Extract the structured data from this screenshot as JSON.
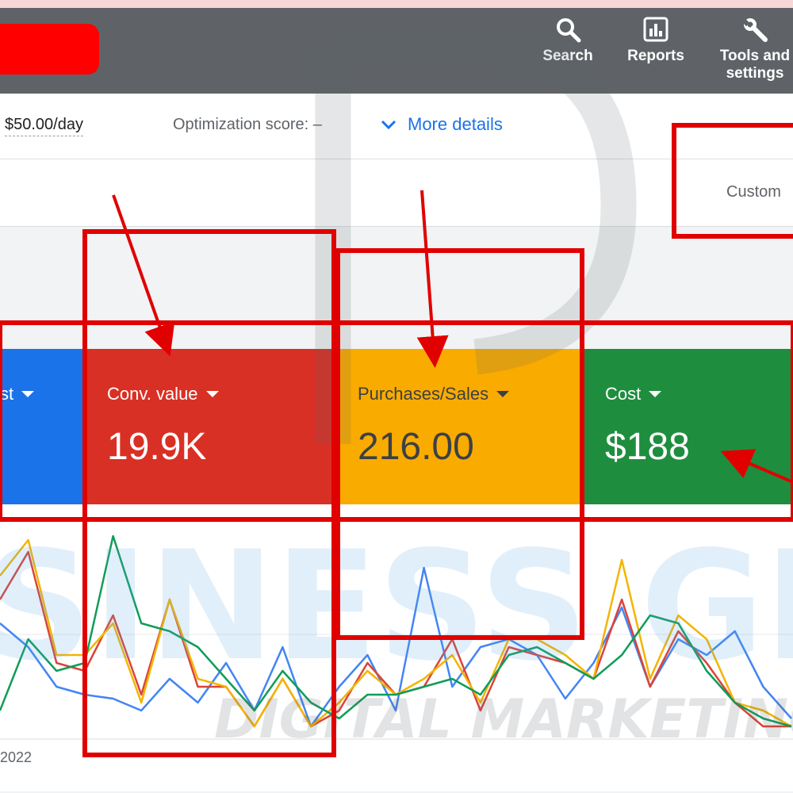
{
  "header": {
    "buttons": [
      {
        "label": "Search",
        "icon": "search-icon"
      },
      {
        "label": "Reports",
        "icon": "reports-icon"
      },
      {
        "label": "Tools and",
        "label2": "settings",
        "icon": "wrench-icon"
      }
    ]
  },
  "infobar": {
    "budget": "$50.00/day",
    "optimization_label": "Optimization score:",
    "optimization_value": "–",
    "more_details": "More details"
  },
  "filterbar": {
    "customize": "Custom"
  },
  "cards": [
    {
      "label": "st",
      "value": "",
      "color": "#1a73e8"
    },
    {
      "label": "Conv. value",
      "value": "19.9K",
      "color": "#d93025"
    },
    {
      "label": "Purchases/Sales",
      "value": "216.00",
      "color": "#f9ab00"
    },
    {
      "label": "Cost",
      "value": "$188",
      "color": "#1e8e3e"
    }
  ],
  "chart_data": {
    "type": "line",
    "x_start_label": "2022",
    "series": [
      {
        "color": "#4285f4",
        "values": [
          28,
          22,
          12,
          10,
          9,
          6,
          14,
          8,
          18,
          6,
          22,
          2,
          12,
          20,
          6,
          42,
          12,
          22,
          24,
          20,
          9,
          18,
          32,
          12,
          24,
          20,
          26,
          12,
          4
        ]
      },
      {
        "color": "#db4437",
        "values": [
          34,
          46,
          18,
          16,
          30,
          10,
          34,
          12,
          12,
          2,
          14,
          2,
          6,
          18,
          10,
          12,
          24,
          6,
          22,
          20,
          18,
          14,
          34,
          12,
          26,
          18,
          8,
          2,
          2
        ]
      },
      {
        "color": "#f4b400",
        "values": [
          40,
          49,
          20,
          20,
          28,
          8,
          34,
          14,
          12,
          2,
          14,
          2,
          8,
          16,
          10,
          14,
          20,
          8,
          24,
          24,
          20,
          14,
          44,
          14,
          30,
          24,
          8,
          6,
          2
        ]
      },
      {
        "color": "#0f9d58",
        "values": [
          6,
          24,
          16,
          18,
          50,
          28,
          26,
          22,
          14,
          6,
          16,
          8,
          4,
          10,
          10,
          12,
          14,
          10,
          20,
          22,
          18,
          14,
          20,
          30,
          28,
          16,
          8,
          4,
          2
        ]
      }
    ]
  },
  "watermark": {
    "line1": "SINESS GR",
    "line2": "DIGITAL MARKETING"
  }
}
